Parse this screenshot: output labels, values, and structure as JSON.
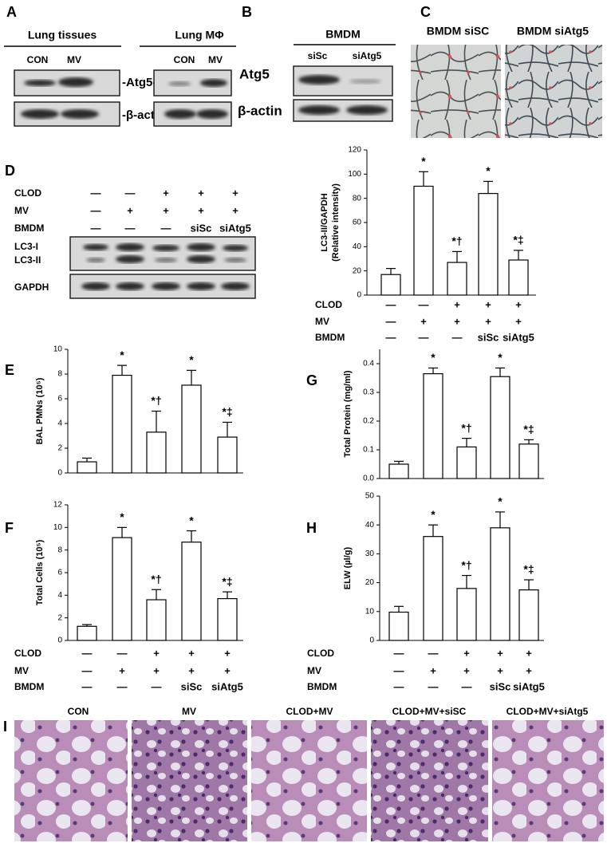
{
  "panel_letters": [
    "A",
    "B",
    "C",
    "D",
    "E",
    "F",
    "G",
    "H",
    "I"
  ],
  "panel_a": {
    "groups": [
      {
        "title": "Lung tissues",
        "lanes": [
          "CON",
          "MV"
        ]
      },
      {
        "title": "Lung MΦ",
        "lanes": [
          "CON",
          "MV"
        ]
      }
    ],
    "bands": [
      "-Atg5-",
      "-β-actin-"
    ]
  },
  "panel_b": {
    "title": "BMDM",
    "lanes": [
      "siSc",
      "siAtg5"
    ],
    "bands": [
      "Atg5",
      "β-actin"
    ]
  },
  "panel_c": {
    "images": [
      "BMDM siSC",
      "BMDM siAtg5"
    ]
  },
  "panel_d_blot": {
    "conditions": [
      {
        "name": "CLOD",
        "values": [
          "—",
          "—",
          "+",
          "+",
          "+"
        ]
      },
      {
        "name": "MV",
        "values": [
          "—",
          "+",
          "+",
          "+",
          "+"
        ]
      },
      {
        "name": "BMDM",
        "values": [
          "—",
          "—",
          "—",
          "siSc",
          "siAtg5"
        ]
      }
    ],
    "bands": [
      "LC3-I",
      "LC3-II",
      "GAPDH"
    ]
  },
  "panel_i": {
    "images": [
      "CON",
      "MV",
      "CLOD+MV",
      "CLOD+MV+siSC",
      "CLOD+MV+siAtg5"
    ]
  },
  "chart_data": [
    {
      "type": "bar",
      "ylabel": [
        "LC3-II/GAPDH",
        "(Relative intensity)"
      ],
      "color": "#ffffff",
      "values": [
        17,
        90,
        27,
        84,
        29
      ],
      "errors": [
        5,
        12,
        9,
        10,
        8
      ],
      "annotations": [
        null,
        "*",
        "*†",
        "*",
        "*‡"
      ],
      "ylim": [
        0,
        120
      ],
      "yticks": [
        0,
        20,
        40,
        60,
        80,
        100,
        120
      ],
      "conditions": [
        {
          "name": "CLOD",
          "values": [
            "—",
            "—",
            "+",
            "+",
            "+"
          ]
        },
        {
          "name": "MV",
          "values": [
            "—",
            "+",
            "+",
            "+",
            "+"
          ]
        },
        {
          "name": "BMDM",
          "values": [
            "—",
            "—",
            "—",
            "siSc",
            "siAtg5"
          ]
        }
      ]
    },
    {
      "type": "bar",
      "ylabel": [
        "BAL PMNs (10⁵)"
      ],
      "color": "#ffffff",
      "values": [
        0.9,
        7.9,
        3.3,
        7.1,
        2.9
      ],
      "errors": [
        0.3,
        0.8,
        1.7,
        1.2,
        1.2
      ],
      "annotations": [
        null,
        "*",
        "*†",
        "*",
        "*‡"
      ],
      "ylim": [
        0,
        10
      ],
      "yticks": [
        0,
        2,
        4,
        6,
        8,
        10
      ]
    },
    {
      "type": "bar",
      "ylabel": [
        "Total Cells (10⁵)"
      ],
      "color": "#ffffff",
      "values": [
        1.25,
        9.1,
        3.6,
        8.7,
        3.7
      ],
      "errors": [
        0.15,
        0.9,
        0.9,
        1.0,
        0.6
      ],
      "annotations": [
        null,
        "*",
        "*†",
        "*",
        "*‡"
      ],
      "ylim": [
        0,
        12
      ],
      "yticks": [
        0,
        2,
        4,
        6,
        8,
        10,
        12
      ],
      "conditions": [
        {
          "name": "CLOD",
          "values": [
            "—",
            "—",
            "+",
            "+",
            "+"
          ]
        },
        {
          "name": "MV",
          "values": [
            "—",
            "+",
            "+",
            "+",
            "+"
          ]
        },
        {
          "name": "BMDM",
          "values": [
            "—",
            "—",
            "—",
            "siSc",
            "siAtg5"
          ]
        }
      ]
    },
    {
      "type": "bar",
      "ylabel": [
        "Total Protein (mg/ml)"
      ],
      "color": "#ffffff",
      "values": [
        0.05,
        0.365,
        0.11,
        0.355,
        0.12
      ],
      "errors": [
        0.01,
        0.02,
        0.03,
        0.03,
        0.015
      ],
      "annotations": [
        null,
        "*",
        "*†",
        "*",
        "*‡"
      ],
      "ylim": [
        0,
        0.45
      ],
      "yticks": [
        {
          "value": 0,
          "label": "0.0"
        },
        0.1,
        0.2,
        0.3,
        0.4
      ]
    },
    {
      "type": "bar",
      "ylabel": [
        "ELW (µl/g)"
      ],
      "color": "#ffffff",
      "values": [
        9.8,
        36,
        18,
        39,
        17.5
      ],
      "errors": [
        2,
        4,
        4.5,
        5.5,
        3.5
      ],
      "annotations": [
        null,
        "*",
        "*†",
        "*",
        "*‡"
      ],
      "ylim": [
        0,
        50
      ],
      "yticks": [
        0,
        10,
        20,
        30,
        40,
        50
      ],
      "conditions": [
        {
          "name": "CLOD",
          "values": [
            "—",
            "—",
            "+",
            "+",
            "+"
          ]
        },
        {
          "name": "MV",
          "values": [
            "—",
            "+",
            "+",
            "+",
            "+"
          ]
        },
        {
          "name": "BMDM",
          "values": [
            "—",
            "—",
            "—",
            "siSc",
            "siAtg5"
          ]
        }
      ]
    }
  ]
}
